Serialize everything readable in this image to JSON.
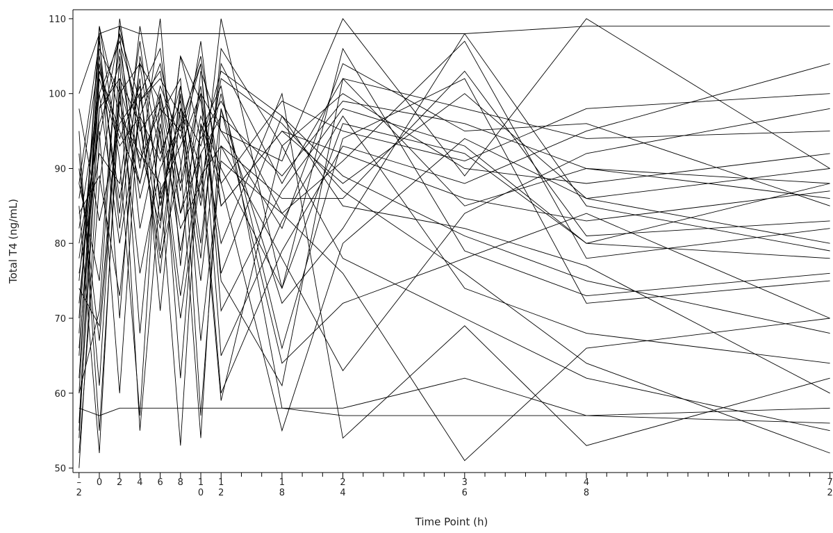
{
  "chart_data": {
    "type": "line",
    "xlabel": "Time Point (h)",
    "ylabel": "Total T4 (ng/mL)",
    "color": "#000000",
    "x": [
      -2,
      0,
      2,
      4,
      6,
      8,
      10,
      12,
      18,
      24,
      36,
      48,
      72
    ],
    "series": [
      {
        "values": [
          75,
          103,
          95,
          88,
          100,
          84,
          97,
          90,
          74,
          96,
          92,
          80,
          78
        ]
      },
      {
        "values": [
          60,
          108,
          70,
          105,
          92,
          99,
          80,
          104,
          88,
          102,
          85,
          90,
          86
        ]
      },
      {
        "values": [
          85,
          52,
          102,
          96,
          78,
          90,
          107,
          85,
          95,
          88,
          100,
          86,
          90
        ]
      },
      {
        "values": [
          55,
          98,
          108,
          82,
          95,
          73,
          92,
          60,
          79,
          93,
          88,
          95,
          104
        ]
      },
      {
        "values": [
          90,
          67,
          100,
          104,
          86,
          96,
          75,
          98,
          64,
          72,
          78,
          84,
          70
        ]
      },
      {
        "values": [
          70,
          109,
          91,
          57,
          100,
          88,
          101,
          76,
          97,
          85,
          82,
          77,
          60
        ]
      },
      {
        "values": [
          80,
          95,
          60,
          100,
          83,
          105,
          94,
          99,
          84,
          91,
          107,
          78,
          82
        ]
      },
      {
        "values": [
          52,
          88,
          106,
          90,
          110,
          77,
          103,
          95,
          82,
          104,
          95,
          96,
          85
        ]
      },
      {
        "values": [
          65,
          104,
          86,
          102,
          71,
          98,
          90,
          59,
          93,
          78,
          70,
          62,
          55
        ]
      },
      {
        "values": [
          88,
          75,
          109,
          95,
          99,
          62,
          96,
          88,
          55,
          80,
          94,
          86,
          80
        ]
      },
      {
        "values": [
          58,
          57,
          58,
          58,
          58,
          58,
          58,
          58,
          58,
          57,
          57,
          57,
          58
        ]
      },
      {
        "values": [
          100,
          108,
          109,
          108,
          108,
          108,
          108,
          108,
          108,
          108,
          108,
          109,
          109
        ]
      },
      {
        "values": [
          72,
          100,
          80,
          97,
          91,
          101,
          85,
          102,
          96,
          87,
          76,
          64,
          52
        ]
      },
      {
        "values": [
          95,
          55,
          99,
          88,
          101,
          94,
          104,
          71,
          87,
          98,
          93,
          80,
          88
        ]
      },
      {
        "values": [
          78,
          96,
          104,
          68,
          96,
          82,
          88,
          100,
          66,
          94,
          102,
          72,
          75
        ]
      },
      {
        "values": [
          62,
          103,
          94,
          101,
          79,
          100,
          57,
          93,
          78,
          63,
          84,
          92,
          98
        ]
      },
      {
        "values": [
          84,
          89,
          73,
          99,
          103,
          87,
          100,
          95,
          91,
          110,
          89,
          110,
          90
        ]
      },
      {
        "values": [
          68,
          109,
          97,
          92,
          88,
          53,
          96,
          80,
          100,
          54,
          69,
          53,
          62
        ]
      },
      {
        "values": [
          92,
          61,
          105,
          86,
          97,
          102,
          67,
          91,
          84,
          76,
          51,
          66,
          70
        ]
      },
      {
        "values": [
          56,
          106,
          100,
          76,
          90,
          96,
          104,
          75,
          61,
          102,
          98,
          94,
          95
        ]
      },
      {
        "values": [
          76,
          92,
          88,
          107,
          85,
          98,
          93,
          103,
          97,
          89,
          81,
          75,
          68
        ]
      },
      {
        "values": [
          82,
          100,
          107,
          97,
          104,
          91,
          54,
          98,
          72,
          82,
          108,
          85,
          79
        ]
      },
      {
        "values": [
          60,
          71,
          110,
          93,
          82,
          105,
          99,
          85,
          95,
          92,
          86,
          83,
          87
        ]
      },
      {
        "values": [
          88,
          107,
          82,
          104,
          99,
          79,
          95,
          101,
          58,
          58,
          62,
          57,
          56
        ]
      },
      {
        "values": [
          66,
          98,
          102,
          55,
          87,
          93,
          100,
          65,
          83,
          97,
          74,
          68,
          64
        ]
      },
      {
        "values": [
          98,
          83,
          96,
          100,
          106,
          84,
          92,
          97,
          89,
          99,
          96,
          90,
          88
        ]
      },
      {
        "values": [
          54,
          102,
          93,
          97,
          76,
          101,
          86,
          110,
          74,
          106,
          79,
          73,
          76
        ]
      },
      {
        "values": [
          74,
          69,
          101,
          91,
          98,
          95,
          105,
          88,
          99,
          95,
          91,
          98,
          100
        ]
      },
      {
        "values": [
          86,
          105,
          84,
          109,
          94,
          70,
          89,
          93,
          86,
          86,
          103,
          81,
          83
        ]
      },
      {
        "values": [
          50,
          94,
          108,
          99,
          102,
          97,
          78,
          106,
          93,
          100,
          90,
          88,
          92
        ]
      }
    ],
    "xlim": [
      -2.6,
      72.3
    ],
    "ylim": [
      49.4,
      111.2
    ],
    "xticks": [
      -2,
      0,
      2,
      4,
      6,
      8,
      10,
      12,
      18,
      24,
      36,
      48,
      72
    ],
    "xminorticks": [
      14,
      16,
      20,
      22,
      26,
      28,
      30,
      32,
      34,
      38,
      40,
      42,
      44,
      46,
      50,
      52,
      54,
      56,
      58,
      60,
      62,
      64,
      66,
      68,
      70
    ],
    "yticks": [
      50,
      60,
      70,
      80,
      90,
      100,
      110
    ]
  }
}
